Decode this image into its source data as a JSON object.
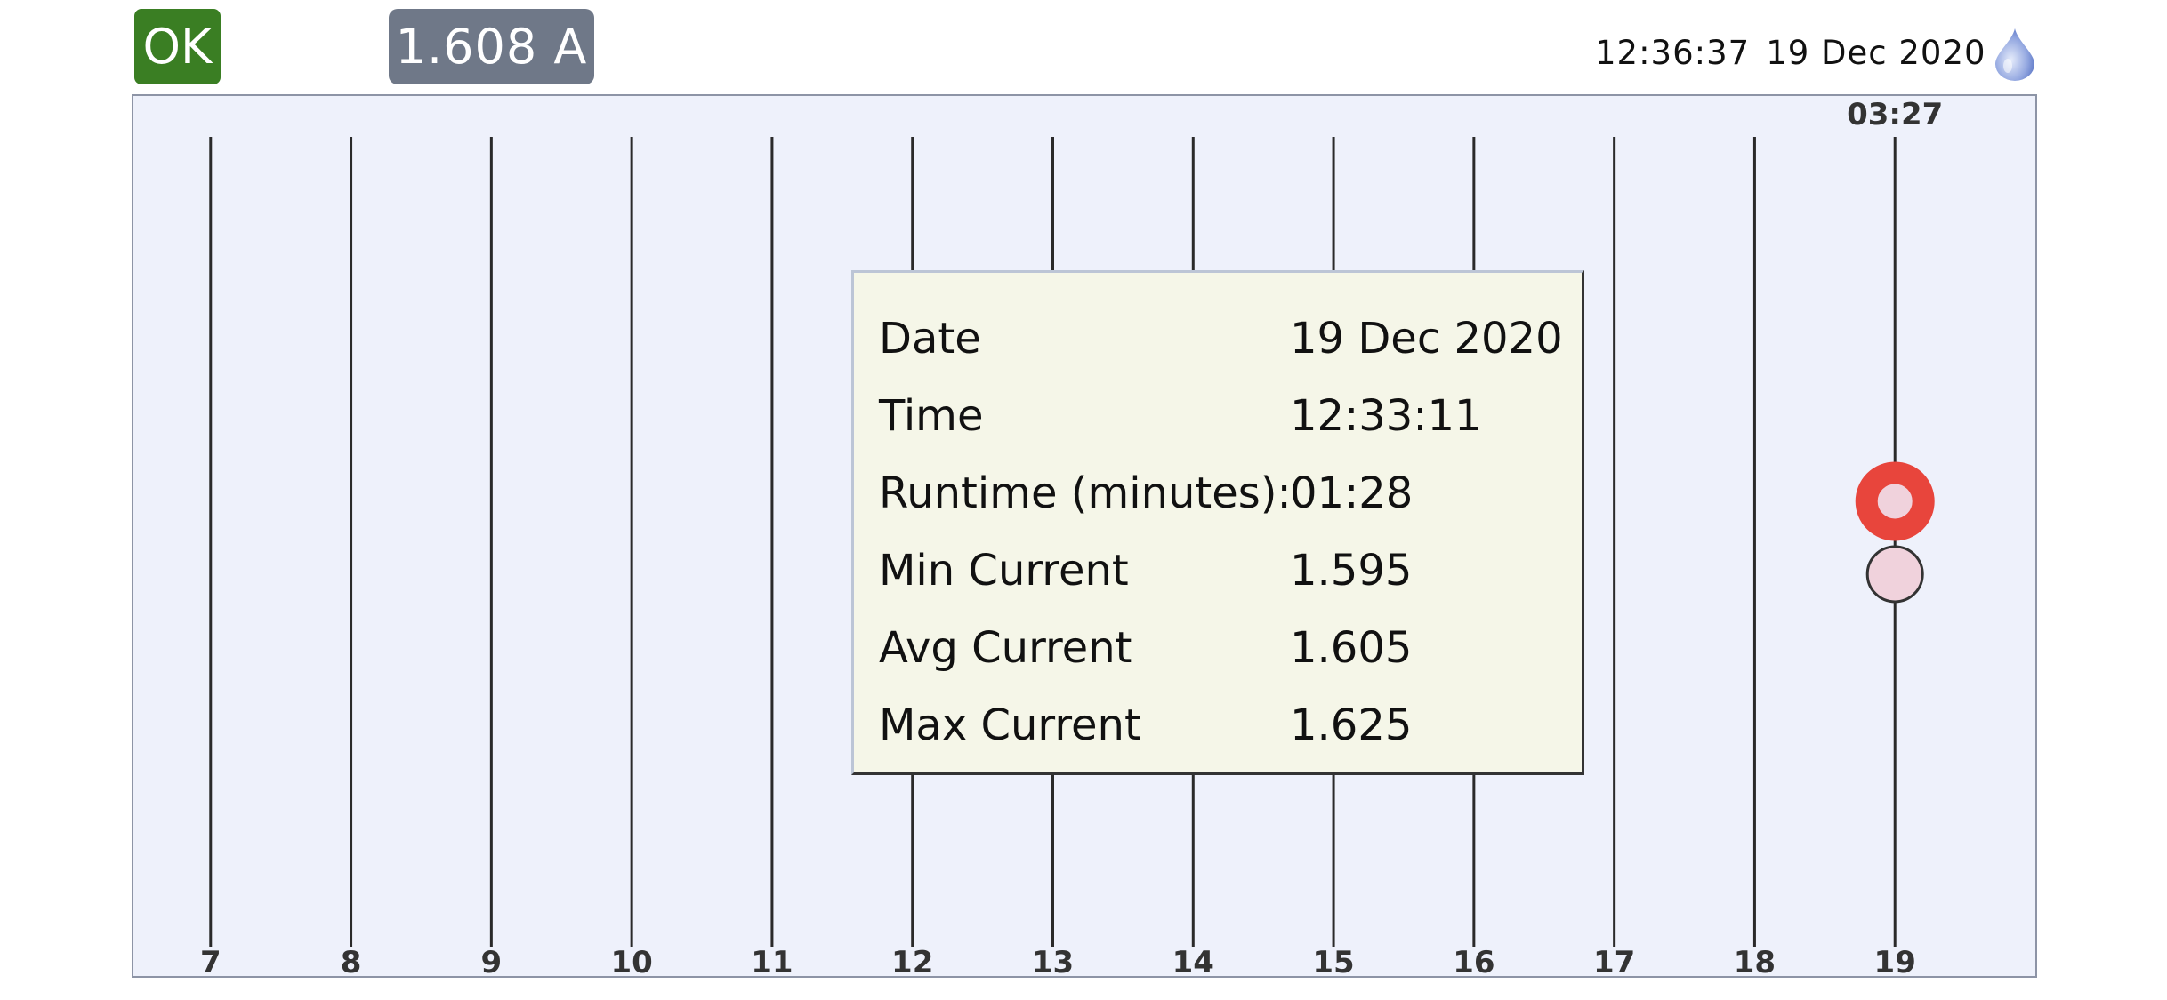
{
  "header": {
    "status": "OK",
    "status_color": "#3a7e23",
    "current_reading": "1.608 A",
    "time": "12:36:37",
    "date": "19 Dec 2020",
    "icon": "water-drop-icon"
  },
  "chart_data": {
    "type": "scatter",
    "x_ticks": [
      "7",
      "8",
      "9",
      "10",
      "11",
      "12",
      "13",
      "14",
      "15",
      "16",
      "17",
      "18",
      "19"
    ],
    "x_range": [
      6.45,
      20.0
    ],
    "marker_label": "03:27",
    "points": [
      {
        "x": 19,
        "level": 0.55,
        "style": "selected",
        "color": "#e8453c"
      },
      {
        "x": 19,
        "level": 0.46,
        "style": "normal",
        "color": "#f0d2dc"
      }
    ],
    "grid": true
  },
  "tooltip": {
    "rows": [
      {
        "label": "Date",
        "value": "19 Dec 2020"
      },
      {
        "label": "Time",
        "value": "12:33:11"
      },
      {
        "label": "Runtime (minutes):",
        "value": "01:28"
      },
      {
        "label": "Min Current",
        "value": "1.595"
      },
      {
        "label": "Avg Current",
        "value": "1.605"
      },
      {
        "label": "Max Current",
        "value": "1.625"
      }
    ]
  }
}
